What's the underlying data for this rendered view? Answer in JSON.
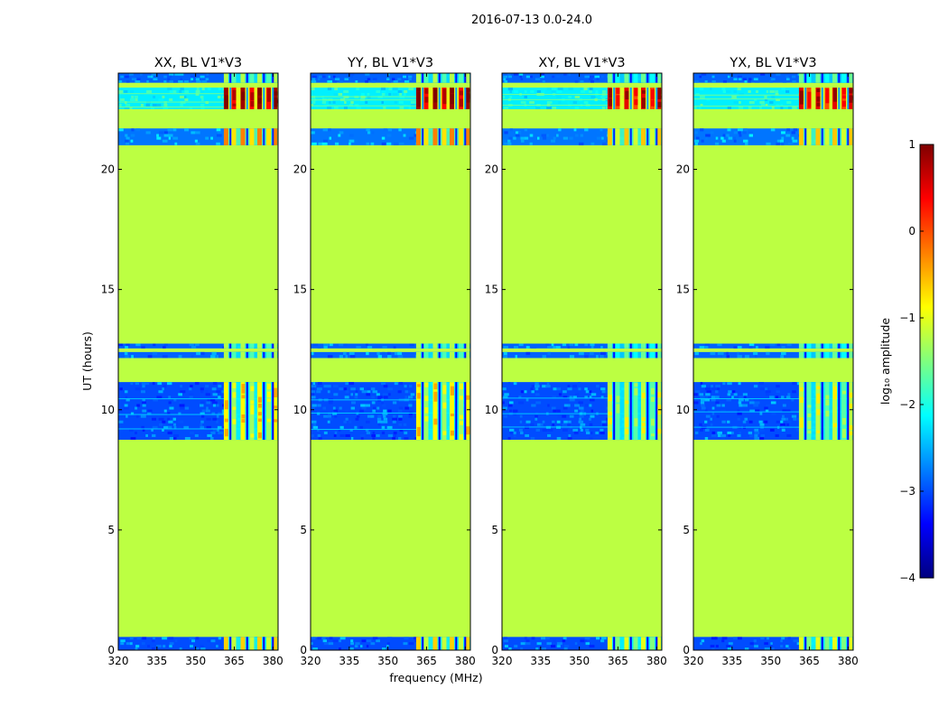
{
  "chart_data": {
    "type": "heatmap",
    "suptitle": "2016-07-13 0.0-24.0",
    "xlabel": "frequency (MHz)",
    "ylabel": "UT (hours)",
    "xlim": [
      320,
      382
    ],
    "ylim": [
      0,
      24
    ],
    "xticks": [
      320,
      335,
      350,
      365,
      380
    ],
    "yticks": [
      0,
      5,
      10,
      15,
      20
    ],
    "panels": [
      {
        "title": "XX, BL V1*V3",
        "rfi_level": "high"
      },
      {
        "title": "YY, BL V1*V3",
        "rfi_level": "high"
      },
      {
        "title": "XY, BL V1*V3",
        "rfi_level": "medium"
      },
      {
        "title": "YX, BL V1*V3",
        "rfi_level": "medium"
      }
    ],
    "background_value": -1.2,
    "observation_bands": [
      {
        "label": "band_0",
        "y0": 0.0,
        "y1": 0.55,
        "mean": -3.0,
        "rfi_peak": -1.2
      },
      {
        "label": "band_1",
        "y0": 8.75,
        "y1": 11.15,
        "mean": -3.0,
        "rfi_peak": -1.4
      },
      {
        "label": "band_2",
        "y0": 12.15,
        "y1": 12.4,
        "mean": -2.9,
        "rfi_peak": -1.8
      },
      {
        "label": "band_3",
        "y0": 12.55,
        "y1": 12.75,
        "mean": -2.9,
        "rfi_peak": -1.8
      },
      {
        "label": "band_4",
        "y0": 21.0,
        "y1": 21.7,
        "mean": -2.8,
        "rfi_peak": -0.8
      },
      {
        "label": "band_5",
        "y0": 22.5,
        "y1": 23.4,
        "mean": -2.2,
        "rfi_peak": 0.3
      },
      {
        "label": "band_6",
        "y0": 23.6,
        "y1": 24.0,
        "mean": -2.9,
        "rfi_peak": -1.8
      }
    ],
    "rfi_columns_mhz": [
      362,
      365,
      368.5,
      372,
      375,
      378.5,
      381
    ],
    "colorbar": {
      "label": "log₁₀ amplitude",
      "range": [
        -4,
        1
      ],
      "ticks": [
        1,
        0,
        -1,
        -2,
        -3,
        -4
      ],
      "tick_labels": [
        "1",
        "0",
        "−1",
        "−2",
        "−3",
        "−4"
      ],
      "colormap": "jet",
      "stops": [
        "#00007f",
        "#0000ff",
        "#007fff",
        "#00ffff",
        "#7fff7f",
        "#ffff00",
        "#ff7f00",
        "#ff0000",
        "#7f0000"
      ]
    }
  }
}
